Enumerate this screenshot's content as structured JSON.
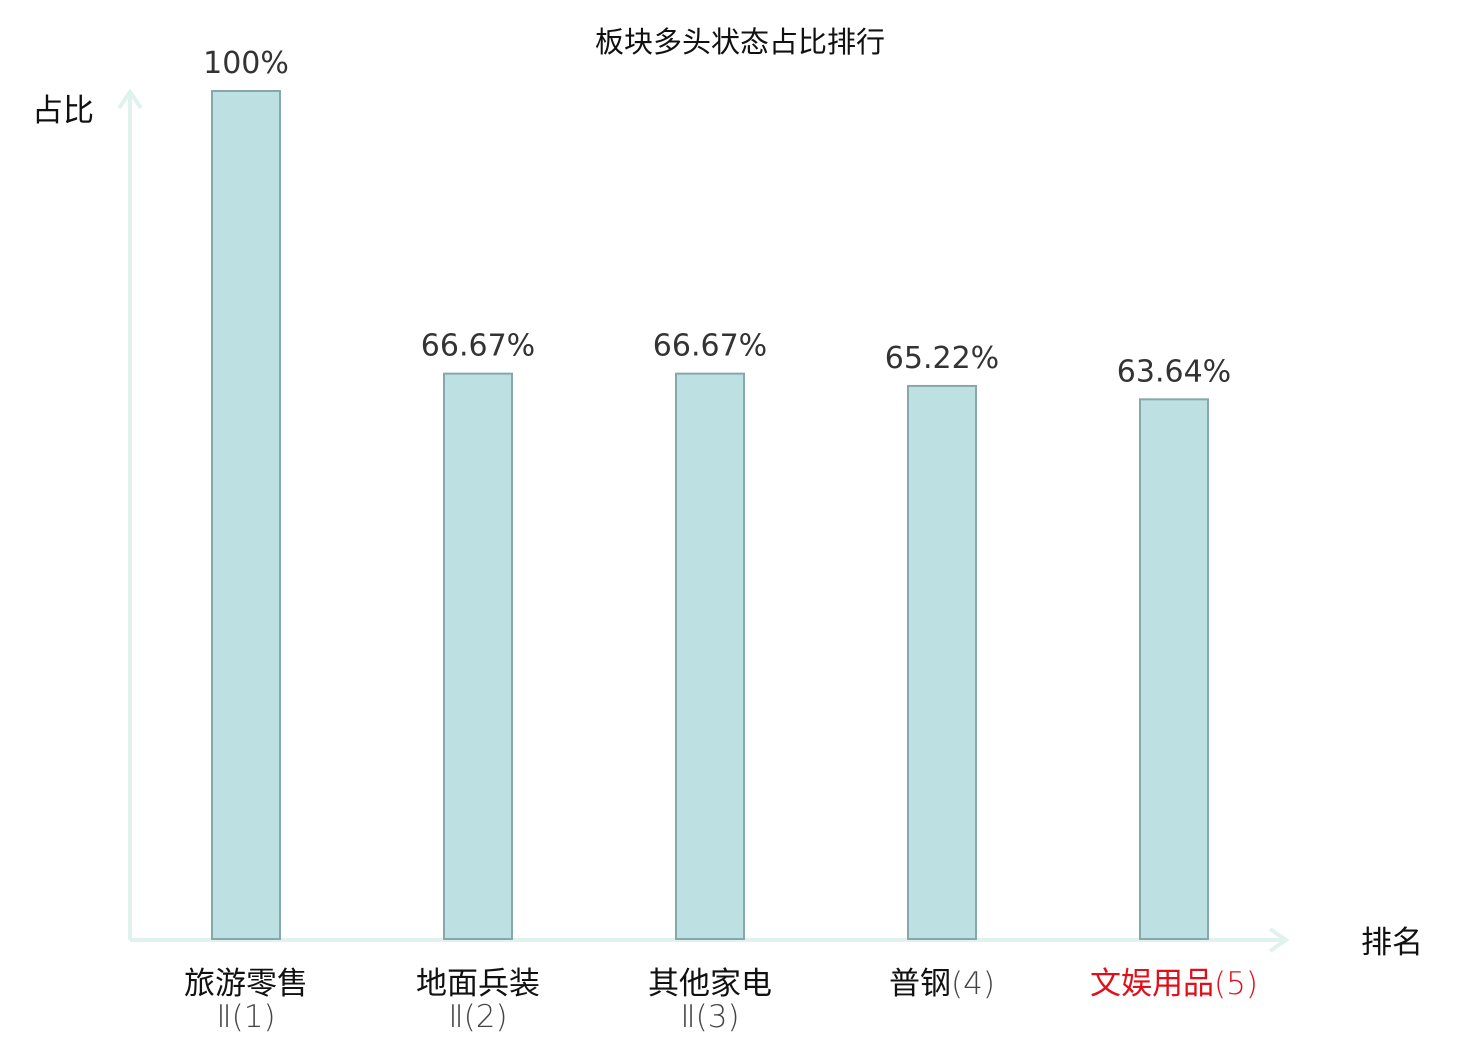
{
  "chart_data": {
    "type": "bar",
    "title": "板块多头状态占比排行",
    "ylabel": "占比",
    "xlabel": "排名",
    "ylim": [
      0,
      100
    ],
    "grid": false,
    "categories": [
      {
        "name": "旅游零售",
        "suffix": "Ⅱ(1)",
        "highlight": false
      },
      {
        "name": "地面兵装",
        "suffix": "Ⅱ(2)",
        "highlight": false
      },
      {
        "name": "其他家电",
        "suffix": "Ⅱ(3)",
        "highlight": false
      },
      {
        "name": "普钢",
        "suffix": "(4)",
        "highlight": false
      },
      {
        "name": "文娱用品",
        "suffix": "(5)",
        "highlight": true
      }
    ],
    "values": [
      100,
      66.67,
      66.67,
      65.22,
      63.64
    ],
    "value_labels": [
      "100%",
      "66.67%",
      "66.67%",
      "65.22%",
      "63.64%"
    ]
  },
  "colors": {
    "bar_fill": "#bde0e2",
    "bar_stroke": "#86a8aa",
    "axis": "#dff2ee",
    "text": "#333333",
    "label_text": "#111111",
    "suffix_text": "#444444",
    "highlight": "#e0101a"
  }
}
